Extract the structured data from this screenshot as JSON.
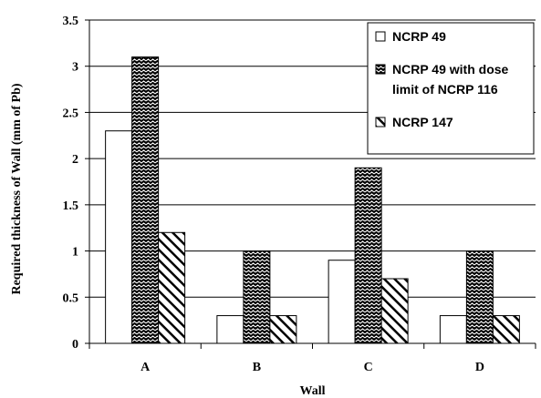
{
  "chart_data": {
    "type": "bar",
    "title": "",
    "xlabel": "Wall",
    "ylabel": "Required thickness of Wall (mm of Pb)",
    "categories": [
      "A",
      "B",
      "C",
      "D"
    ],
    "ylim": [
      0,
      3.5
    ],
    "yticks": [
      "0",
      "0.5",
      "1",
      "1.5",
      "2",
      "2.5",
      "3",
      "3.5"
    ],
    "grid": true,
    "legend_position": "top-right",
    "series": [
      {
        "name": "NCRP 49",
        "values": [
          2.3,
          0.3,
          0.9,
          0.3
        ],
        "pattern": "none"
      },
      {
        "name": "NCRP 49 with dose limit of NCRP 116",
        "values": [
          3.1,
          1.0,
          1.9,
          1.0
        ],
        "pattern": "wavy"
      },
      {
        "name": "NCRP 147",
        "values": [
          1.2,
          0.3,
          0.7,
          0.3
        ],
        "pattern": "diagonal"
      }
    ]
  }
}
